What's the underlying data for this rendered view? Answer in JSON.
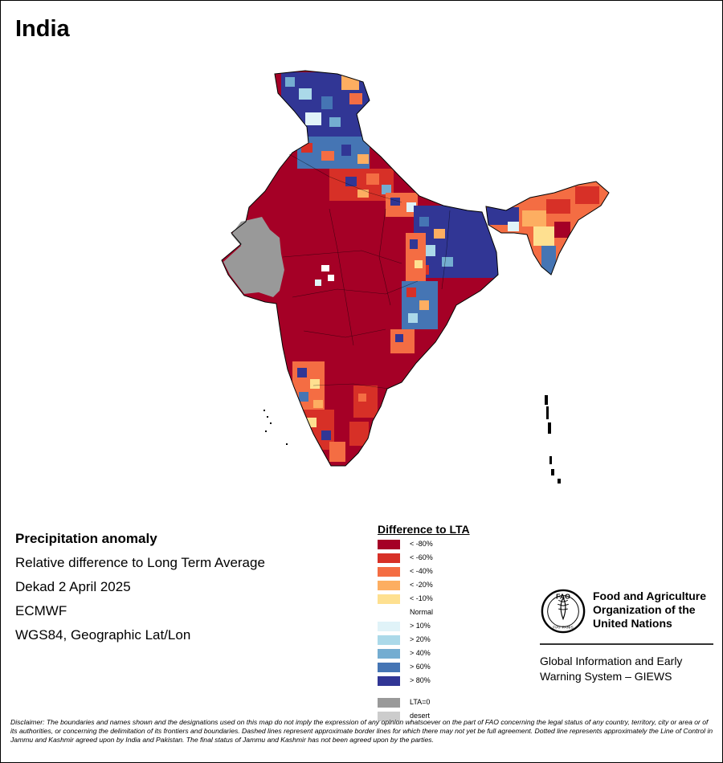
{
  "title": "India",
  "map_info": {
    "heading": "Precipitation anomaly",
    "subtitle": "Relative difference to Long Term Average",
    "period": "Dekad 2 April 2025",
    "source": "ECMWF",
    "projection": "WGS84, Geographic Lat/Lon"
  },
  "legend": {
    "title": "Difference to LTA",
    "items": [
      {
        "label": "< -80%",
        "color": "#a50026"
      },
      {
        "label": "< -60%",
        "color": "#d73027"
      },
      {
        "label": "< -40%",
        "color": "#f46d43"
      },
      {
        "label": "< -20%",
        "color": "#fdae61"
      },
      {
        "label": "< -10%",
        "color": "#fee090"
      },
      {
        "label": "Normal",
        "color": "#ffffff"
      },
      {
        "label": "> 10%",
        "color": "#e0f3f8"
      },
      {
        "label": "> 20%",
        "color": "#abd9e9"
      },
      {
        "label": "> 40%",
        "color": "#74add1"
      },
      {
        "label": "> 60%",
        "color": "#4575b4"
      },
      {
        "label": "> 80%",
        "color": "#313695"
      }
    ],
    "extra_items": [
      {
        "label": "LTA=0",
        "color": "#999999"
      },
      {
        "label": "desert",
        "color": "#cccccc"
      }
    ]
  },
  "organization": {
    "name_line1": "Food and Agriculture",
    "name_line2": "Organization of the",
    "name_line3": "United Nations",
    "logo_text": "FAO",
    "logo_motto": "FIAT PANIS",
    "system_line1": "Global Information and Early",
    "system_line2": "Warning System – GIEWS"
  },
  "disclaimer": "Disclaimer: The boundaries and names shown and the designations used on this map do not imply the expression of any opinion whatsoever on the part of FAO concerning the legal status of any country, territory, city or area or of its authorities, or concerning the delimitation of its frontiers and boundaries. Dashed lines represent approximate border lines for which there may not yet be full agreement. Dotted line represents approximately the Line of Control in Jammu and Kashmir agreed upon by India and Pakistan. The final status of Jammu and Kashmir has not been agreed upon by the parties."
}
